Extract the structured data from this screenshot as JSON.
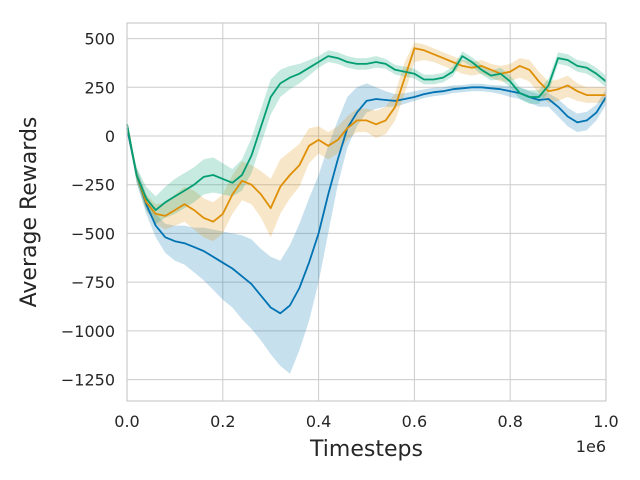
{
  "chart_data": {
    "type": "line",
    "title": "",
    "xlabel": "Timesteps",
    "ylabel": "Average Rewards",
    "x_offset_label": "1e6",
    "xlim": [
      0.0,
      1.0
    ],
    "ylim": [
      -1360,
      580
    ],
    "xticks": [
      0.0,
      0.2,
      0.4,
      0.6,
      0.8,
      1.0
    ],
    "xtick_labels": [
      "0.0",
      "0.2",
      "0.4",
      "0.6",
      "0.8",
      "1.0"
    ],
    "yticks": [
      500,
      250,
      0,
      -250,
      -500,
      -750,
      -1000,
      -1250
    ],
    "ytick_labels": [
      "500",
      "250",
      "0",
      "−250",
      "−500",
      "−750",
      "−1000",
      "−1250"
    ],
    "grid": true,
    "legend": "none",
    "series": [
      {
        "color": "#0173b2",
        "x": [
          0.0,
          0.02,
          0.04,
          0.06,
          0.08,
          0.1,
          0.12,
          0.14,
          0.16,
          0.18,
          0.2,
          0.22,
          0.24,
          0.26,
          0.28,
          0.3,
          0.32,
          0.34,
          0.36,
          0.38,
          0.4,
          0.42,
          0.44,
          0.46,
          0.48,
          0.5,
          0.52,
          0.54,
          0.56,
          0.58,
          0.6,
          0.62,
          0.64,
          0.66,
          0.68,
          0.7,
          0.72,
          0.74,
          0.76,
          0.78,
          0.8,
          0.82,
          0.84,
          0.86,
          0.88,
          0.9,
          0.92,
          0.94,
          0.96,
          0.98,
          1.0
        ],
        "y": [
          40,
          -200,
          -350,
          -460,
          -520,
          -540,
          -550,
          -570,
          -590,
          -620,
          -650,
          -680,
          -720,
          -760,
          -820,
          -880,
          -910,
          -870,
          -780,
          -650,
          -500,
          -300,
          -120,
          40,
          120,
          180,
          190,
          185,
          180,
          190,
          200,
          215,
          225,
          230,
          240,
          245,
          250,
          250,
          245,
          240,
          230,
          220,
          200,
          185,
          190,
          150,
          100,
          70,
          80,
          120,
          200
        ],
        "lower": [
          40,
          -240,
          -400,
          -520,
          -600,
          -640,
          -660,
          -700,
          -740,
          -790,
          -840,
          -880,
          -940,
          -990,
          -1050,
          -1120,
          -1180,
          -1220,
          -1100,
          -950,
          -750,
          -500,
          -250,
          -60,
          50,
          120,
          140,
          150,
          150,
          165,
          180,
          195,
          205,
          210,
          220,
          225,
          230,
          230,
          225,
          215,
          200,
          190,
          170,
          150,
          150,
          100,
          50,
          20,
          30,
          80,
          160
        ],
        "upper": [
          40,
          -160,
          -300,
          -400,
          -450,
          -460,
          -460,
          -470,
          -470,
          -480,
          -490,
          -500,
          -510,
          -530,
          -580,
          -620,
          -640,
          -560,
          -450,
          -320,
          -200,
          -50,
          80,
          200,
          250,
          270,
          250,
          230,
          215,
          220,
          230,
          240,
          248,
          250,
          260,
          262,
          268,
          268,
          262,
          260,
          255,
          248,
          230,
          215,
          220,
          190,
          145,
          115,
          125,
          160,
          240
        ]
      },
      {
        "color": "#de8f05",
        "x": [
          0.0,
          0.02,
          0.04,
          0.06,
          0.08,
          0.1,
          0.12,
          0.14,
          0.16,
          0.18,
          0.2,
          0.22,
          0.24,
          0.26,
          0.28,
          0.3,
          0.32,
          0.34,
          0.36,
          0.38,
          0.4,
          0.42,
          0.44,
          0.46,
          0.48,
          0.5,
          0.52,
          0.54,
          0.56,
          0.58,
          0.6,
          0.62,
          0.64,
          0.66,
          0.68,
          0.7,
          0.72,
          0.74,
          0.76,
          0.78,
          0.8,
          0.82,
          0.84,
          0.86,
          0.88,
          0.9,
          0.92,
          0.94,
          0.96,
          0.98,
          1.0
        ],
        "y": [
          60,
          -200,
          -340,
          -400,
          -410,
          -380,
          -350,
          -380,
          -420,
          -440,
          -400,
          -300,
          -230,
          -250,
          -300,
          -370,
          -260,
          -200,
          -150,
          -50,
          -20,
          -50,
          -20,
          40,
          80,
          80,
          60,
          80,
          150,
          300,
          450,
          440,
          420,
          400,
          380,
          360,
          350,
          360,
          340,
          320,
          330,
          360,
          340,
          280,
          230,
          240,
          260,
          230,
          210,
          210,
          210
        ],
        "lower": [
          60,
          -230,
          -380,
          -450,
          -480,
          -460,
          -440,
          -480,
          -520,
          -540,
          -500,
          -400,
          -330,
          -350,
          -420,
          -520,
          -400,
          -320,
          -260,
          -140,
          -90,
          -120,
          -90,
          -20,
          20,
          20,
          -10,
          10,
          80,
          220,
          380,
          390,
          380,
          360,
          340,
          320,
          310,
          320,
          300,
          280,
          280,
          300,
          280,
          220,
          170,
          180,
          200,
          180,
          170,
          170,
          170
        ],
        "upper": [
          60,
          -170,
          -300,
          -350,
          -340,
          -300,
          -260,
          -280,
          -320,
          -340,
          -300,
          -200,
          -130,
          -150,
          -180,
          -220,
          -120,
          -80,
          -40,
          40,
          50,
          20,
          50,
          100,
          140,
          140,
          130,
          150,
          220,
          380,
          480,
          470,
          450,
          430,
          410,
          390,
          380,
          390,
          370,
          360,
          370,
          400,
          390,
          330,
          280,
          290,
          310,
          270,
          250,
          250,
          250
        ]
      },
      {
        "color": "#029e73",
        "x": [
          0.0,
          0.02,
          0.04,
          0.06,
          0.08,
          0.1,
          0.12,
          0.14,
          0.16,
          0.18,
          0.2,
          0.22,
          0.24,
          0.26,
          0.28,
          0.3,
          0.32,
          0.34,
          0.36,
          0.38,
          0.4,
          0.42,
          0.44,
          0.46,
          0.48,
          0.5,
          0.52,
          0.54,
          0.56,
          0.58,
          0.6,
          0.62,
          0.64,
          0.66,
          0.68,
          0.7,
          0.72,
          0.74,
          0.76,
          0.78,
          0.8,
          0.82,
          0.84,
          0.86,
          0.88,
          0.9,
          0.92,
          0.94,
          0.96,
          0.98,
          1.0
        ],
        "y": [
          60,
          -200,
          -320,
          -380,
          -340,
          -310,
          -280,
          -250,
          -210,
          -200,
          -220,
          -240,
          -200,
          -100,
          50,
          200,
          270,
          300,
          320,
          350,
          380,
          410,
          400,
          380,
          370,
          370,
          380,
          370,
          340,
          330,
          320,
          290,
          290,
          300,
          330,
          410,
          380,
          340,
          310,
          320,
          280,
          220,
          200,
          200,
          260,
          400,
          390,
          360,
          350,
          320,
          280
        ],
        "lower": [
          60,
          -240,
          -380,
          -450,
          -420,
          -400,
          -370,
          -340,
          -300,
          -290,
          -300,
          -310,
          -280,
          -190,
          -40,
          110,
          200,
          240,
          270,
          310,
          350,
          380,
          370,
          350,
          340,
          340,
          350,
          345,
          315,
          305,
          295,
          265,
          265,
          275,
          305,
          385,
          355,
          315,
          285,
          290,
          250,
          190,
          165,
          165,
          225,
          370,
          360,
          330,
          320,
          290,
          250
        ],
        "upper": [
          60,
          -160,
          -260,
          -310,
          -260,
          -220,
          -190,
          -160,
          -120,
          -110,
          -140,
          -170,
          -120,
          -10,
          140,
          290,
          340,
          360,
          370,
          390,
          410,
          440,
          430,
          410,
          400,
          400,
          410,
          395,
          365,
          355,
          345,
          315,
          315,
          325,
          355,
          435,
          405,
          365,
          335,
          350,
          310,
          250,
          235,
          235,
          295,
          430,
          420,
          390,
          380,
          350,
          310
        ]
      }
    ]
  }
}
